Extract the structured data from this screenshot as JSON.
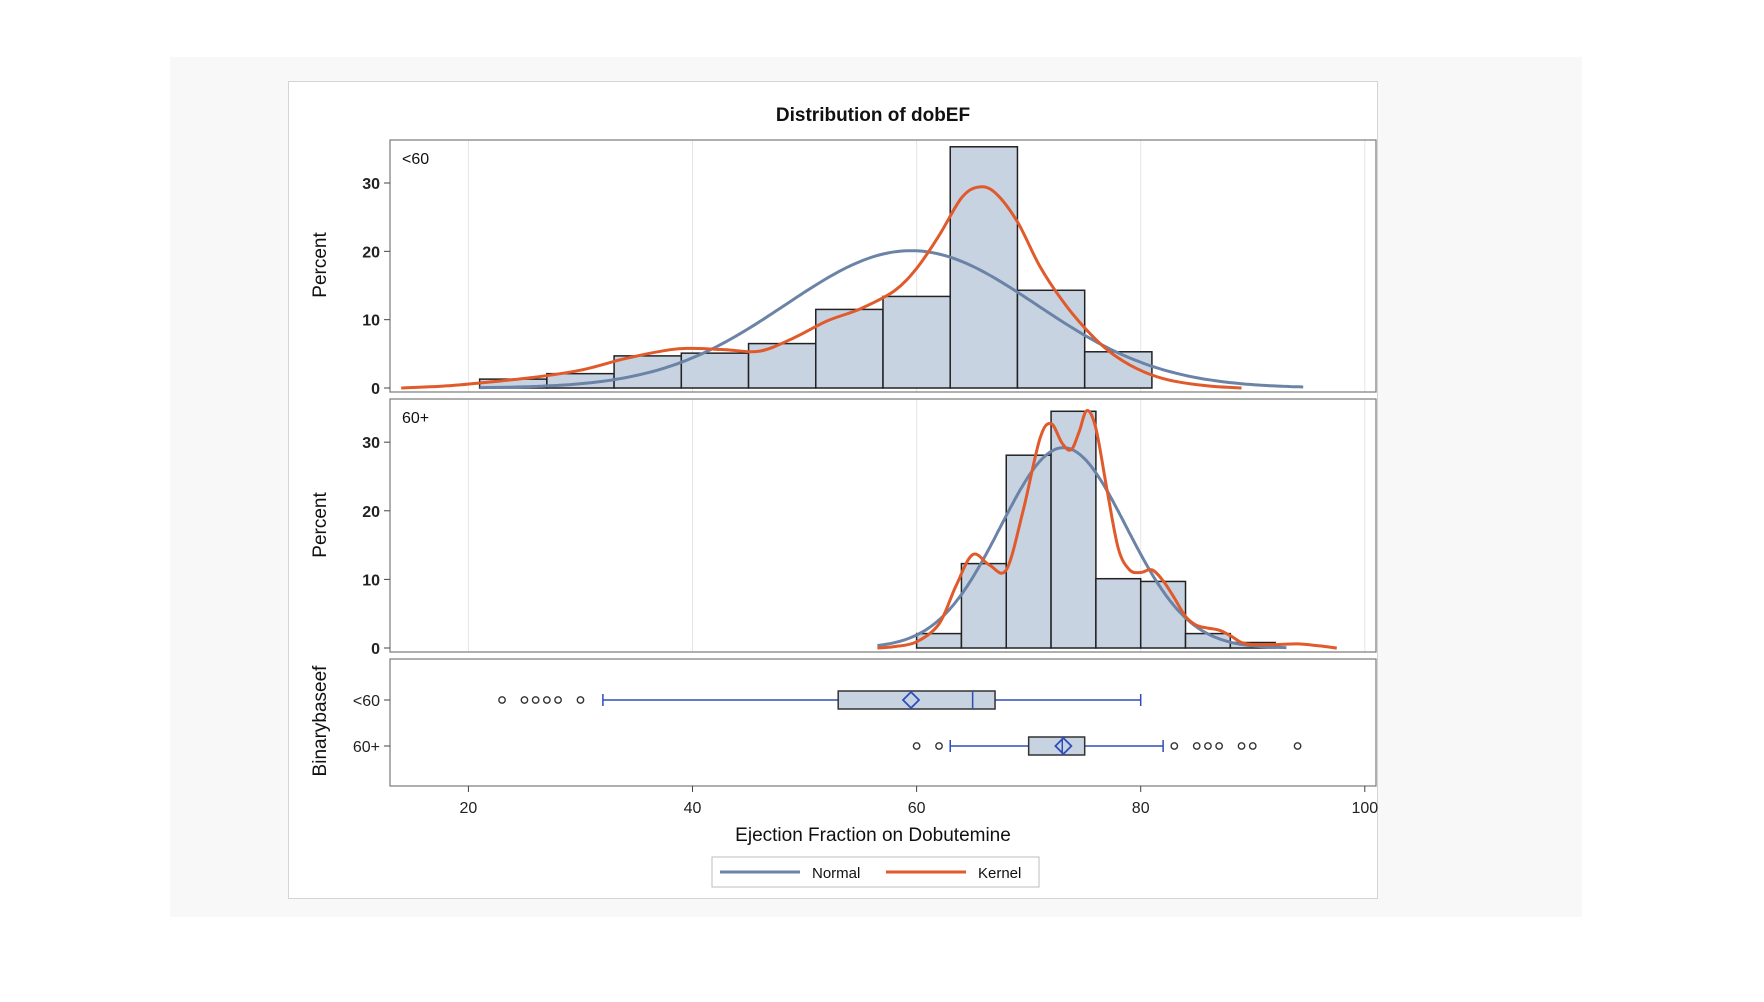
{
  "chart_data": {
    "type": "bar",
    "title": "Distribution of dobEF",
    "xlabel": "Ejection Fraction on Dobutemine",
    "ylabel": "Percent",
    "xlim": [
      13,
      101
    ],
    "x_ticks": [
      20,
      40,
      60,
      80,
      100
    ],
    "ylim": [
      0,
      36
    ],
    "y_ticks": [
      0,
      10,
      20,
      30
    ],
    "legend": [
      {
        "name": "Normal",
        "color": "#6b83a6"
      },
      {
        "name": "Kernel",
        "color": "#e05a2b"
      }
    ],
    "colors": {
      "bar_fill": "#c8d3e2",
      "bar_edge": "#222222",
      "normal": "#6b83a6",
      "kernel": "#e05a2b",
      "box_line": "#2e4dbb",
      "grid": "#e6e6e6"
    },
    "panels": [
      {
        "label": "<60",
        "bins": [
          {
            "start": 21,
            "end": 27,
            "percent": 1.3
          },
          {
            "start": 27,
            "end": 33,
            "percent": 2.1
          },
          {
            "start": 33,
            "end": 39,
            "percent": 4.7
          },
          {
            "start": 39,
            "end": 45,
            "percent": 5.1
          },
          {
            "start": 45,
            "end": 51,
            "percent": 6.5
          },
          {
            "start": 51,
            "end": 57,
            "percent": 11.5
          },
          {
            "start": 57,
            "end": 63,
            "percent": 13.4
          },
          {
            "start": 63,
            "end": 69,
            "percent": 35.3
          },
          {
            "start": 69,
            "end": 75,
            "percent": 14.3
          },
          {
            "start": 75,
            "end": 81,
            "percent": 5.3
          }
        ],
        "normal": {
          "mean": 59.5,
          "sd": 11.2,
          "peak": 20.1,
          "range": [
            21,
            94.5
          ]
        },
        "kernel": [
          [
            14,
            0
          ],
          [
            18,
            0.3
          ],
          [
            22,
            0.9
          ],
          [
            26,
            1.6
          ],
          [
            30,
            2.6
          ],
          [
            34,
            4.3
          ],
          [
            38,
            5.6
          ],
          [
            40,
            5.8
          ],
          [
            43,
            5.6
          ],
          [
            46,
            5.4
          ],
          [
            49,
            7.3
          ],
          [
            52,
            9.8
          ],
          [
            55,
            11.6
          ],
          [
            58,
            14.2
          ],
          [
            60,
            17.5
          ],
          [
            62,
            22.3
          ],
          [
            64,
            27.8
          ],
          [
            65.5,
            29.4
          ],
          [
            67,
            28.6
          ],
          [
            69,
            24.3
          ],
          [
            71,
            17.8
          ],
          [
            73,
            12.8
          ],
          [
            75,
            8.8
          ],
          [
            77,
            5.6
          ],
          [
            79,
            3.4
          ],
          [
            81,
            1.9
          ],
          [
            83,
            1
          ],
          [
            86,
            0.3
          ],
          [
            89,
            0
          ]
        ]
      },
      {
        "label": "60+",
        "bins": [
          {
            "start": 60,
            "end": 64,
            "percent": 2.1
          },
          {
            "start": 64,
            "end": 68,
            "percent": 12.3
          },
          {
            "start": 68,
            "end": 72,
            "percent": 28.1
          },
          {
            "start": 72,
            "end": 76,
            "percent": 34.5
          },
          {
            "start": 76,
            "end": 80,
            "percent": 10.1
          },
          {
            "start": 80,
            "end": 84,
            "percent": 9.7
          },
          {
            "start": 84,
            "end": 88,
            "percent": 2.1
          },
          {
            "start": 88,
            "end": 92,
            "percent": 0.8
          }
        ],
        "normal": {
          "mean": 73.1,
          "sd": 5.6,
          "peak": 29.2,
          "range": [
            56.5,
            93
          ]
        },
        "kernel": [
          [
            56.5,
            0
          ],
          [
            58,
            0.2
          ],
          [
            60,
            0.9
          ],
          [
            62,
            3.5
          ],
          [
            63.5,
            9
          ],
          [
            65,
            13.6
          ],
          [
            66.5,
            12.1
          ],
          [
            68,
            11.4
          ],
          [
            69.5,
            20
          ],
          [
            71,
            30.5
          ],
          [
            72,
            32.7
          ],
          [
            73,
            29.8
          ],
          [
            73.8,
            28.9
          ],
          [
            74.5,
            31.5
          ],
          [
            75.2,
            34.6
          ],
          [
            76,
            32
          ],
          [
            77,
            23
          ],
          [
            78,
            14.5
          ],
          [
            79,
            11.4
          ],
          [
            80,
            11
          ],
          [
            81,
            11.4
          ],
          [
            82,
            9.8
          ],
          [
            83,
            7.3
          ],
          [
            84,
            4.6
          ],
          [
            85,
            3.3
          ],
          [
            86,
            2.9
          ],
          [
            87,
            2.6
          ],
          [
            88,
            1.8
          ],
          [
            89,
            0.8
          ],
          [
            90,
            0.5
          ],
          [
            92,
            0.5
          ],
          [
            94,
            0.6
          ],
          [
            96,
            0.3
          ],
          [
            97.5,
            0
          ]
        ]
      }
    ],
    "boxplot": {
      "ylabel": "Binarybaseef",
      "groups": [
        {
          "label": "<60",
          "whisker_low": 32,
          "q1": 53,
          "median": 65,
          "q3": 67,
          "whisker_high": 80,
          "mean": 59.5,
          "outliers": [
            23,
            25,
            26,
            27,
            28,
            30
          ]
        },
        {
          "label": "60+",
          "whisker_low": 63,
          "q1": 70,
          "median": 73,
          "q3": 75,
          "whisker_high": 82,
          "mean": 73.1,
          "outliers": [
            60,
            62,
            83,
            85,
            86,
            87,
            89,
            90,
            94
          ]
        }
      ]
    }
  }
}
